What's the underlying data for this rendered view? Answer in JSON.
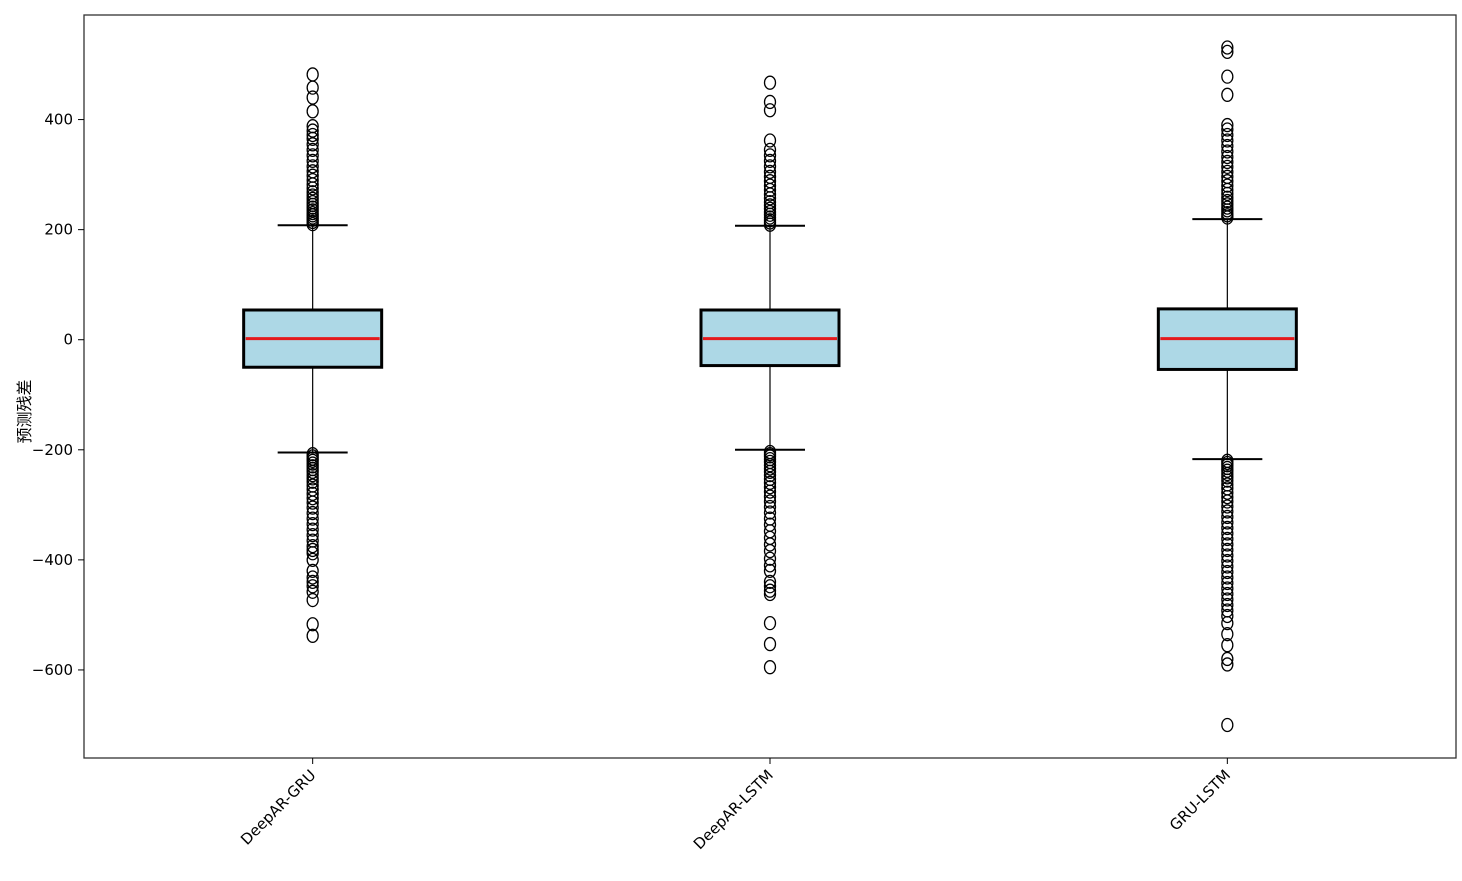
{
  "chart_data": {
    "type": "boxplot",
    "title": "",
    "xlabel": "",
    "ylabel": "预测残差",
    "ylim": [
      -760,
      590
    ],
    "yticks": [
      400,
      200,
      0,
      -200,
      -400,
      -600
    ],
    "categories": [
      "DeepAR-GRU",
      "DeepAR-LSTM",
      "GRU-LSTM"
    ],
    "grid": false,
    "colors": {
      "box_fill": "#add8e6",
      "median": "#e41a1c",
      "edge": "#000000"
    },
    "boxes": [
      {
        "name": "DeepAR-GRU",
        "whisker_low": -205,
        "q1": -50,
        "median": 2,
        "q3": 54,
        "whisker_high": 208,
        "outliers_high": [
          210,
          214,
          218,
          222,
          226,
          230,
          235,
          240,
          245,
          250,
          256,
          262,
          268,
          275,
          282,
          290,
          298,
          306,
          315,
          325,
          335,
          345,
          355,
          365,
          372,
          380,
          388,
          415,
          440,
          458,
          482
        ],
        "outliers_low": [
          -208,
          -212,
          -216,
          -220,
          -225,
          -230,
          -235,
          -240,
          -246,
          -252,
          -258,
          -265,
          -272,
          -280,
          -288,
          -296,
          -305,
          -315,
          -325,
          -335,
          -345,
          -355,
          -365,
          -375,
          -382,
          -388,
          -400,
          -420,
          -432,
          -440,
          -448,
          -458,
          -473,
          -517,
          -538
        ]
      },
      {
        "name": "DeepAR-LSTM",
        "whisker_low": -200,
        "q1": -47,
        "median": 2,
        "q3": 54,
        "whisker_high": 207,
        "outliers_high": [
          209,
          213,
          217,
          222,
          227,
          232,
          238,
          244,
          250,
          257,
          264,
          272,
          280,
          288,
          296,
          305,
          315,
          325,
          335,
          345,
          362,
          417,
          432,
          467
        ],
        "outliers_low": [
          -204,
          -208,
          -212,
          -217,
          -222,
          -228,
          -234,
          -240,
          -246,
          -253,
          -260,
          -268,
          -276,
          -285,
          -294,
          -304,
          -314,
          -325,
          -336,
          -348,
          -360,
          -372,
          -384,
          -398,
          -410,
          -420,
          -440,
          -448,
          -456,
          -462,
          -515,
          -553,
          -595
        ]
      },
      {
        "name": "GRU-LSTM",
        "whisker_low": -217,
        "q1": -54,
        "median": 2,
        "q3": 56,
        "whisker_high": 219,
        "outliers_high": [
          222,
          226,
          230,
          235,
          240,
          246,
          252,
          258,
          265,
          272,
          280,
          288,
          296,
          305,
          314,
          323,
          332,
          342,
          352,
          362,
          372,
          382,
          390,
          445,
          478,
          523,
          531
        ],
        "outliers_low": [
          -220,
          -224,
          -228,
          -233,
          -238,
          -244,
          -250,
          -256,
          -263,
          -270,
          -278,
          -286,
          -294,
          -303,
          -312,
          -322,
          -332,
          -342,
          -352,
          -362,
          -372,
          -382,
          -392,
          -402,
          -412,
          -422,
          -432,
          -442,
          -452,
          -462,
          -472,
          -482,
          -492,
          -502,
          -515,
          -535,
          -555,
          -580,
          -590,
          -700
        ]
      }
    ]
  }
}
